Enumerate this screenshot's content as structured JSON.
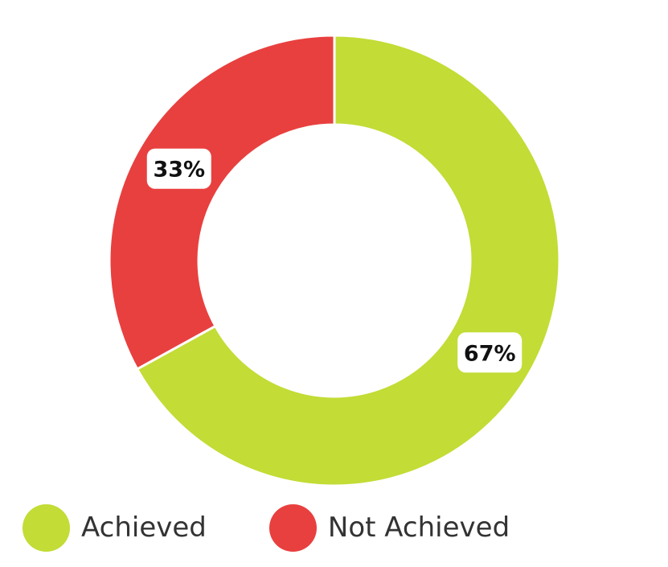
{
  "chart_data": {
    "type": "pie",
    "variant": "donut",
    "categories": [
      "Achieved",
      "Not Achieved"
    ],
    "values": [
      67,
      33
    ],
    "data_labels": [
      "67%",
      "33%"
    ],
    "colors": [
      "#c3dc36",
      "#e8403f"
    ],
    "title": "",
    "legend_position": "bottom-left"
  },
  "legend": {
    "items": [
      {
        "label": "Achieved",
        "color": "#c3dc36"
      },
      {
        "label": "Not Achieved",
        "color": "#e8403f"
      }
    ]
  }
}
